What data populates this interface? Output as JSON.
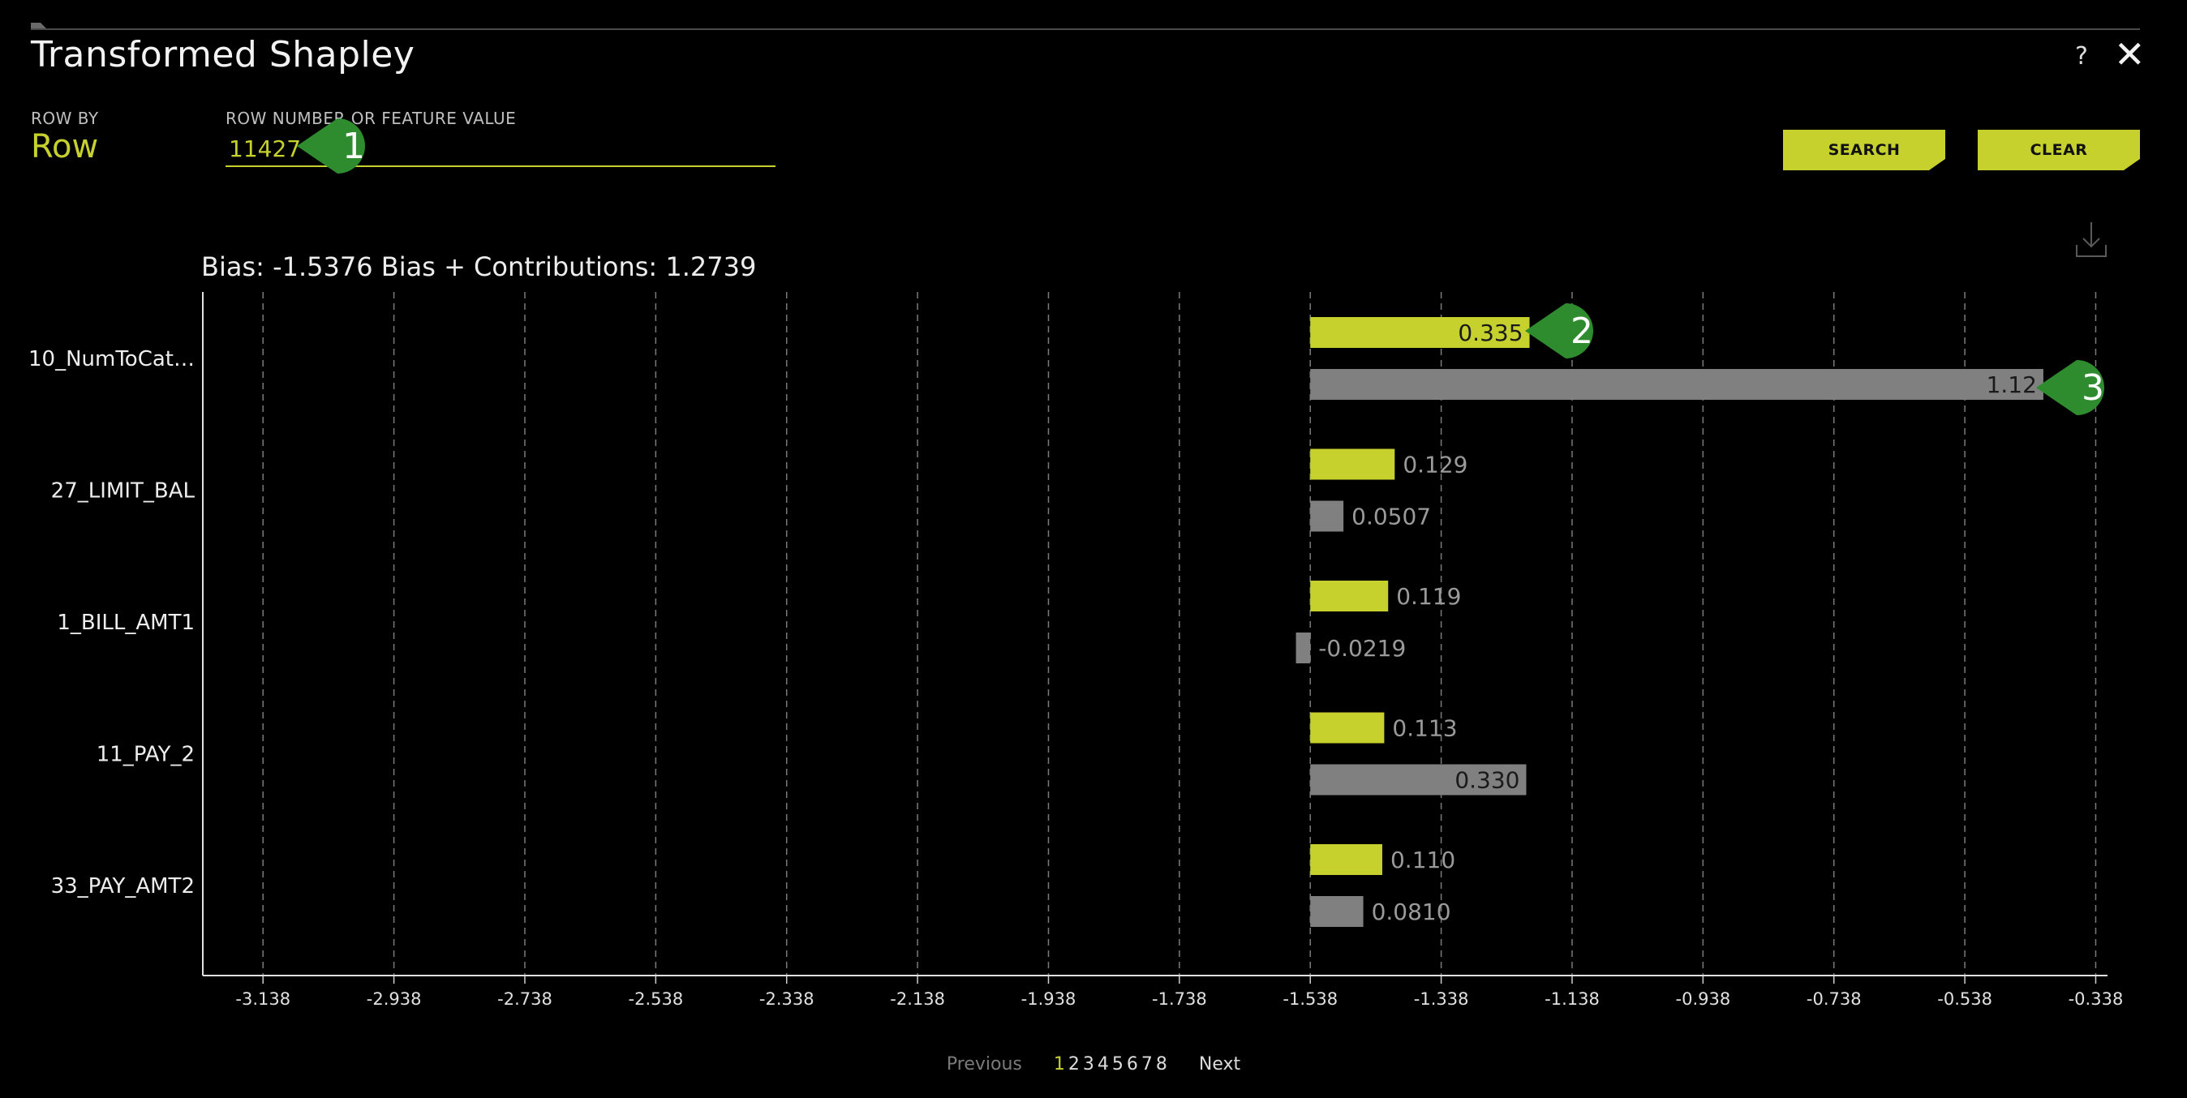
{
  "window": {
    "title": "Transformed Shapley",
    "help": "?",
    "close": "✕"
  },
  "controls": {
    "row_by_label": "ROW BY",
    "row_by_value": "Row",
    "search_label": "ROW NUMBER OR FEATURE VALUE",
    "search_value": "11427",
    "search_button": "SEARCH",
    "clear_button": "CLEAR"
  },
  "icons": {
    "download": "download-icon",
    "help": "help-icon",
    "close": "close-icon"
  },
  "colors": {
    "accent": "#c6d12e",
    "secondary_bar": "#808080",
    "callout": "#2e8b2e"
  },
  "chart_data": {
    "type": "bar",
    "orientation": "horizontal",
    "title": "Bias: -1.5376 Bias + Contributions: 1.2739",
    "base": -1.538,
    "categories": [
      "10_NumToCat…",
      "27_LIMIT_BAL",
      "1_BILL_AMT1",
      "11_PAY_2",
      "33_PAY_AMT2"
    ],
    "series": [
      {
        "values": [
          0.335,
          0.129,
          0.119,
          0.113,
          0.11
        ],
        "labels": [
          "0.335",
          "0.129",
          "0.119",
          "0.113",
          "0.110"
        ],
        "color": "#c6d12e"
      },
      {
        "values": [
          1.12,
          0.0507,
          -0.0219,
          0.33,
          0.081
        ],
        "labels": [
          "1.12",
          "0.0507",
          "-0.0219",
          "0.330",
          "0.0810"
        ],
        "color": "#808080"
      }
    ],
    "xticks": [
      "-3.138",
      "-2.938",
      "-2.738",
      "-2.538",
      "-2.338",
      "-2.138",
      "-1.938",
      "-1.738",
      "-1.538",
      "-1.338",
      "-1.138",
      "-0.938",
      "-0.738",
      "-0.538",
      "-0.338"
    ],
    "xlim": [
      -3.23,
      -0.32
    ],
    "grid": true
  },
  "pagination": {
    "previous": "Previous",
    "next": "Next",
    "pages": [
      "1",
      "2",
      "3",
      "4",
      "5",
      "6",
      "7",
      "8"
    ],
    "current": "1"
  },
  "callouts": [
    "1",
    "2",
    "3"
  ]
}
